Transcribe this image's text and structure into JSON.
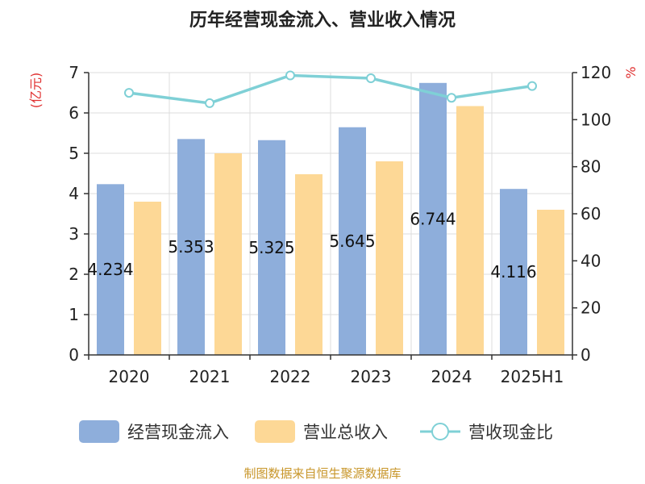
{
  "chart_data": {
    "type": "bar",
    "title": "历年经营现金流入、营业收入情况",
    "categories": [
      "2020",
      "2021",
      "2022",
      "2023",
      "2024",
      "2025H1"
    ],
    "series": [
      {
        "name": "经营现金流入",
        "axis": "left",
        "type": "bar",
        "values": [
          4.234,
          5.353,
          5.325,
          5.645,
          6.744,
          4.116
        ],
        "labels": [
          "4.234",
          "5.353",
          "5.325",
          "5.645",
          "6.744",
          "4.116"
        ]
      },
      {
        "name": "营业总收入",
        "axis": "left",
        "type": "bar",
        "values": [
          3.8,
          5.0,
          4.48,
          4.8,
          6.17,
          3.6
        ]
      },
      {
        "name": "营收现金比",
        "axis": "right",
        "type": "line",
        "values": [
          111.4,
          107.0,
          118.8,
          117.6,
          109.3,
          114.3
        ]
      }
    ],
    "y_left": {
      "label": "(亿元)",
      "min": 0,
      "max": 7,
      "ticks": [
        "0",
        "1",
        "2",
        "3",
        "4",
        "5",
        "6",
        "7"
      ]
    },
    "y_right": {
      "label": "%",
      "min": 0,
      "max": 120,
      "ticks": [
        "0",
        "20",
        "40",
        "60",
        "80",
        "100",
        "120"
      ]
    },
    "grid": true,
    "legend_position": "bottom",
    "colors": {
      "cash_inflow": "#8eaedb",
      "revenue": "#fdd896",
      "ratio_line": "#7fd0d6",
      "unit_red": "#e03030",
      "source": "#c8962a"
    }
  },
  "source": "制图数据来自恒生聚源数据库"
}
